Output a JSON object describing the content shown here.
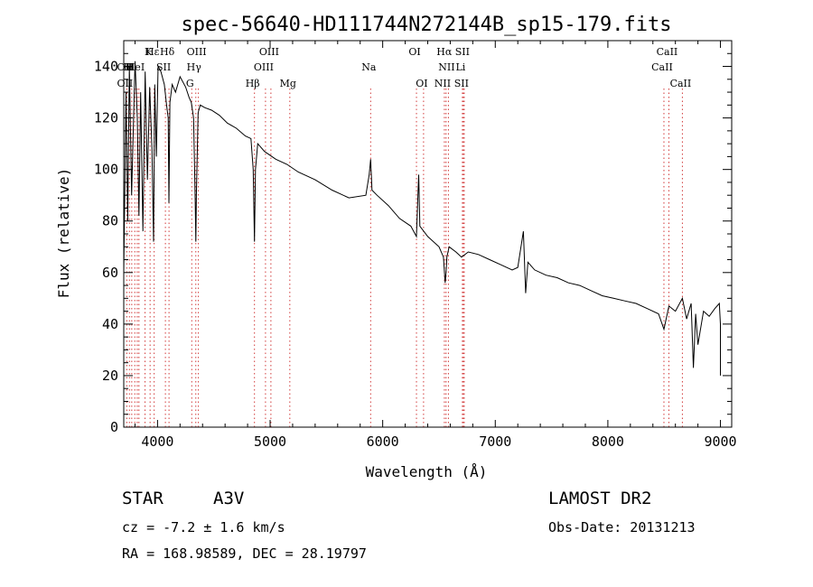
{
  "chart_data": {
    "type": "line",
    "title": "spec-56640-HD111744N272144B_sp15-179.fits",
    "xlabel": "Wavelength (Å)",
    "ylabel": "Flux (relative)",
    "xlim": [
      3700,
      9100
    ],
    "ylim": [
      0,
      150
    ],
    "xticks": [
      4000,
      5000,
      6000,
      7000,
      8000,
      9000
    ],
    "yticks": [
      0,
      20,
      40,
      60,
      80,
      100,
      120,
      140
    ],
    "grid": false,
    "series": [
      {
        "x": [
          3700,
          3720,
          3735,
          3750,
          3770,
          3800,
          3820,
          3835,
          3850,
          3870,
          3890,
          3910,
          3930,
          3950,
          3965,
          3975,
          3990,
          4005,
          4030,
          4060,
          4080,
          4095,
          4101,
          4110,
          4130,
          4160,
          4200,
          4250,
          4280,
          4300,
          4320,
          4335,
          4340,
          4345,
          4360,
          4380,
          4420,
          4480,
          4550,
          4620,
          4700,
          4780,
          4830,
          4850,
          4861,
          4870,
          4890,
          4950,
          5050,
          5150,
          5250,
          5400,
          5550,
          5700,
          5850,
          5880,
          5893,
          5905,
          5950,
          6050,
          6150,
          6250,
          6300,
          6320,
          6330,
          6400,
          6500,
          6540,
          6555,
          6563,
          6570,
          6590,
          6650,
          6700,
          6760,
          6850,
          6950,
          7050,
          7150,
          7200,
          7250,
          7270,
          7290,
          7350,
          7450,
          7550,
          7650,
          7750,
          7850,
          7950,
          8050,
          8150,
          8250,
          8350,
          8450,
          8498,
          8542,
          8600,
          8662,
          8700,
          8740,
          8760,
          8780,
          8800,
          8850,
          8900,
          8950,
          8990,
          9000,
          9000
        ],
        "y": [
          60,
          130,
          80,
          140,
          90,
          142,
          120,
          82,
          130,
          76,
          138,
          96,
          132,
          108,
          72,
          133,
          105,
          140,
          138,
          133,
          125,
          120,
          87,
          126,
          133,
          130,
          136,
          132,
          128,
          126,
          120,
          88,
          72,
          90,
          122,
          125,
          124,
          123,
          121,
          118,
          116,
          113,
          112,
          100,
          72,
          100,
          110,
          107,
          104,
          102,
          99,
          96,
          92,
          89,
          90,
          98,
          104,
          92,
          90,
          86,
          81,
          78,
          74,
          98,
          78,
          74,
          70,
          66,
          56,
          60,
          66,
          70,
          68,
          66,
          68,
          67,
          65,
          63,
          61,
          62,
          76,
          52,
          64,
          61,
          59,
          58,
          56,
          55,
          53,
          51,
          50,
          49,
          48,
          46,
          44,
          38,
          47,
          45,
          50,
          42,
          48,
          23,
          44,
          32,
          45,
          43,
          46,
          48,
          40,
          20
        ]
      }
    ],
    "annotations": [
      {
        "label": "Hε",
        "x": 3970,
        "row": 1
      },
      {
        "label": "K",
        "x": 3934,
        "row": 1
      },
      {
        "label": "Hδ",
        "x": 4102,
        "row": 1
      },
      {
        "label": "OIII",
        "x": 4363,
        "row": 1
      },
      {
        "label": "OIII",
        "x": 5007,
        "row": 1
      },
      {
        "label": "OI",
        "x": 6300,
        "row": 1
      },
      {
        "label": "Hα",
        "x": 6563,
        "row": 1
      },
      {
        "label": "SII",
        "x": 6724,
        "row": 1
      },
      {
        "label": "CaII",
        "x": 8542,
        "row": 1
      },
      {
        "label": "OII",
        "x": 3727,
        "row": 2
      },
      {
        "label": "H",
        "x": 3750,
        "row": 2
      },
      {
        "label": "H",
        "x": 3771,
        "row": 2
      },
      {
        "label": "HeI",
        "x": 3820,
        "row": 2
      },
      {
        "label": "SII",
        "x": 4070,
        "row": 2
      },
      {
        "label": "Hγ",
        "x": 4340,
        "row": 2
      },
      {
        "label": "OIII",
        "x": 4959,
        "row": 2
      },
      {
        "label": "Na",
        "x": 5893,
        "row": 2
      },
      {
        "label": "NII",
        "x": 6584,
        "row": 2
      },
      {
        "label": "Li",
        "x": 6708,
        "row": 2
      },
      {
        "label": "CaII",
        "x": 8498,
        "row": 2
      },
      {
        "label": "OII",
        "x": 3727,
        "row": 3
      },
      {
        "label": "G",
        "x": 4304,
        "row": 3
      },
      {
        "label": "Hβ",
        "x": 4861,
        "row": 3
      },
      {
        "label": "Mg",
        "x": 5175,
        "row": 3
      },
      {
        "label": "OI",
        "x": 6363,
        "row": 3
      },
      {
        "label": "NII",
        "x": 6548,
        "row": 3
      },
      {
        "label": "SII",
        "x": 6716,
        "row": 3
      },
      {
        "label": "CaII",
        "x": 8662,
        "row": 3
      }
    ],
    "line_marks": [
      3727,
      3750,
      3771,
      3798,
      3820,
      3835,
      3889,
      3934,
      3970,
      4070,
      4102,
      4304,
      4340,
      4363,
      4861,
      4959,
      5007,
      5175,
      5893,
      6300,
      6363,
      6548,
      6563,
      6584,
      6708,
      6716,
      6724,
      8498,
      8542,
      8662
    ],
    "colors": {
      "spectrum": "#000000",
      "line_marks": "#d23c3c"
    }
  },
  "info": {
    "object_class": "STAR",
    "subclass": "A3V",
    "survey": "LAMOST DR2",
    "cz": "cz = -7.2 ± 1.6 km/s",
    "obs_date": "Obs-Date: 20131213",
    "coords": "RA = 168.98589, DEC =  28.19797"
  }
}
